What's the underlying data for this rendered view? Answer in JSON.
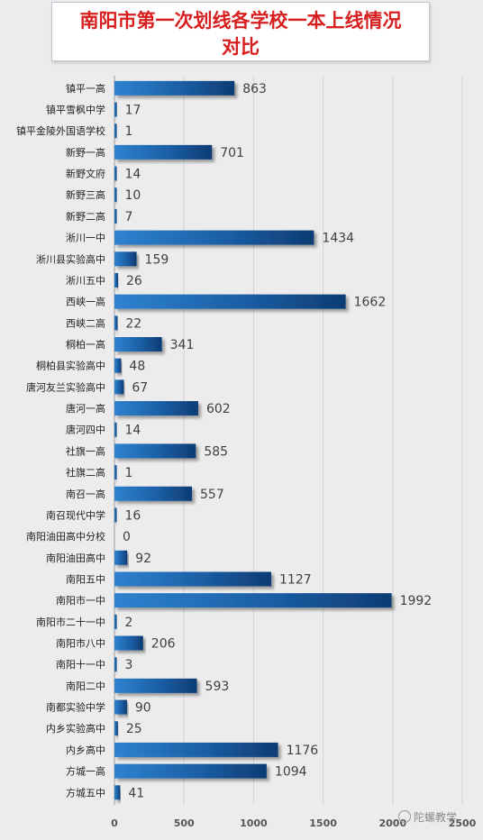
{
  "chart_data": {
    "type": "bar",
    "orientation": "horizontal",
    "title": [
      "南阳市第一次划线各学校一本上线情况",
      "对比"
    ],
    "categories": [
      "镇平一高",
      "镇平雪枫中学",
      "镇平金陵外国语学校",
      "新野一高",
      "新野文府",
      "新野三高",
      "新野二高",
      "淅川一中",
      "淅川县实验高中",
      "淅川五中",
      "西峡一高",
      "西峡二高",
      "桐柏一高",
      "桐柏县实验高中",
      "唐河友兰实验高中",
      "唐河一高",
      "唐河四中",
      "社旗一高",
      "社旗二高",
      "南召一高",
      "南召现代中学",
      "南阳油田高中分校",
      "南阳油田高中",
      "南阳五中",
      "南阳市一中",
      "南阳市二十一中",
      "南阳市八中",
      "南阳十一中",
      "南阳二中",
      "南都实验中学",
      "内乡实验高中",
      "内乡高中",
      "方城一高",
      "方城五中"
    ],
    "values": [
      863,
      17,
      1,
      701,
      14,
      10,
      7,
      1434,
      159,
      26,
      1662,
      22,
      341,
      48,
      67,
      602,
      14,
      585,
      1,
      557,
      16,
      0,
      92,
      1127,
      1992,
      2,
      206,
      3,
      593,
      90,
      25,
      1176,
      1094,
      41
    ],
    "xticks": [
      "0",
      "500",
      "1000",
      "1500",
      "2000",
      "2500"
    ],
    "xlim": [
      0,
      2500
    ],
    "grid": true,
    "bar_color": "#1c62a8"
  },
  "watermark": "陀螺教学"
}
